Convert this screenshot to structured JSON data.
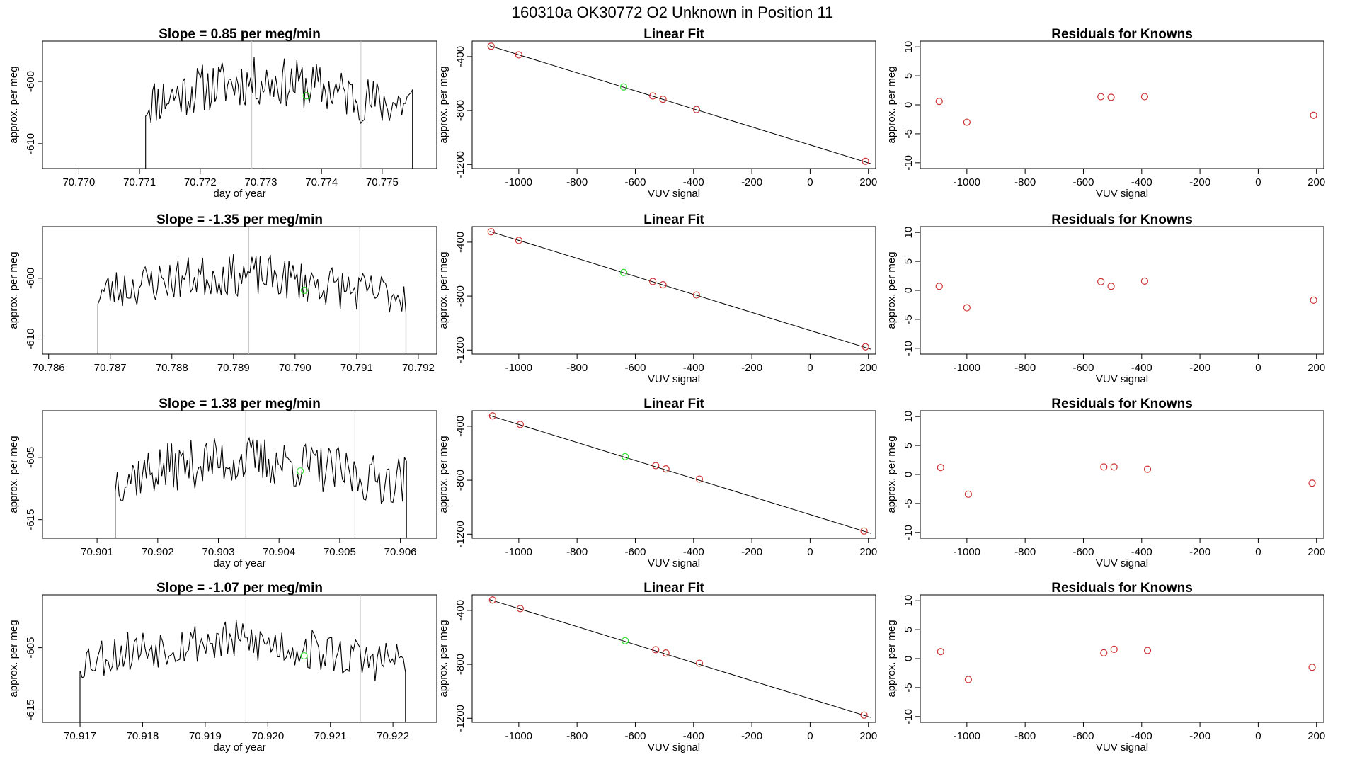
{
  "page_title": "160310a      OK30772    O2 Unknown in Position  11",
  "colors": {
    "known": "#cd3333",
    "unknown": "#33dd33",
    "trace": "#000000",
    "marker": "#c8c8c8"
  },
  "chart_data": [
    {
      "type": "line",
      "row": 0,
      "kind": "timeseries",
      "title": "Slope =  0.85  per meg/min",
      "xlabel": "day of year",
      "ylabel": "approx. per meg",
      "xlim": [
        70.7694,
        70.7759
      ],
      "ylim": [
        -614,
        -593.5
      ],
      "xticks": [
        "70.770",
        "70.771",
        "70.772",
        "70.773",
        "70.774",
        "70.775"
      ],
      "yticks": [
        "-600",
        "-610"
      ],
      "trace": {
        "start": 70.7711,
        "end": 70.7755,
        "base": -603.5,
        "amp": 3.5,
        "noise": 4,
        "seed": 11
      },
      "markers": [
        70.77285,
        70.77465
      ],
      "unknown_point": {
        "x": 70.77375,
        "y": -602.3
      }
    },
    {
      "type": "scatter",
      "row": 0,
      "kind": "fit",
      "title": "Linear Fit",
      "xlabel": "VUV signal",
      "ylabel": "approx. per meg",
      "xlim": [
        -1160,
        225
      ],
      "ylim": [
        -1230,
        -285
      ],
      "xticks": [
        "-1000",
        "-800",
        "-600",
        "-400",
        "-200",
        "0",
        "200"
      ],
      "yticks": [
        "-400",
        "-800",
        "-1200"
      ],
      "fit_line": {
        "x": [
          -1100,
          210
        ],
        "y": [
          -320,
          -1195
        ]
      },
      "knowns": {
        "x": [
          -1095,
          -1000,
          -540,
          -505,
          -390,
          190
        ],
        "y": [
          -323,
          -387,
          -692,
          -716,
          -792,
          -1176
        ]
      },
      "unknown": {
        "x": -640,
        "y": -625
      }
    },
    {
      "type": "scatter",
      "row": 0,
      "kind": "residuals",
      "title": "Residuals for Knowns",
      "xlabel": "VUV signal",
      "ylabel": "approx. per meg",
      "xlim": [
        -1160,
        225
      ],
      "ylim": [
        -11,
        11
      ],
      "xticks": [
        "-1000",
        "-800",
        "-600",
        "-400",
        "-200",
        "0",
        "200"
      ],
      "yticks": [
        "10",
        "5",
        "0",
        "-5",
        "-10"
      ],
      "knowns": {
        "x": [
          -1095,
          -1000,
          -540,
          -505,
          -390,
          190
        ],
        "y": [
          0.6,
          -3.0,
          1.4,
          1.3,
          1.4,
          -1.8
        ]
      }
    },
    {
      "type": "line",
      "row": 1,
      "kind": "timeseries",
      "title": "Slope =  -1.35  per meg/min",
      "xlabel": "",
      "ylabel": "approx. per meg",
      "xlim": [
        70.7859,
        70.7923
      ],
      "ylim": [
        -612.5,
        -591.5
      ],
      "xticks": [
        "70.786",
        "70.787",
        "70.788",
        "70.789",
        "70.790",
        "70.791",
        "70.792"
      ],
      "yticks": [
        "-600",
        "-610"
      ],
      "trace": {
        "start": 70.7868,
        "end": 70.7918,
        "base": -602.5,
        "amp": 3,
        "noise": 3.5,
        "seed": 23
      },
      "markers": [
        70.78925,
        70.79105
      ],
      "unknown_point": {
        "x": 70.79015,
        "y": -602.0
      }
    },
    {
      "type": "scatter",
      "row": 1,
      "kind": "fit",
      "title": "Linear Fit",
      "xlabel": "VUV signal",
      "ylabel": "approx. per meg",
      "xlim": [
        -1160,
        225
      ],
      "ylim": [
        -1230,
        -285
      ],
      "xticks": [
        "-1000",
        "-800",
        "-600",
        "-400",
        "-200",
        "0",
        "200"
      ],
      "yticks": [
        "-400",
        "-800",
        "-1200"
      ],
      "fit_line": {
        "x": [
          -1100,
          210
        ],
        "y": [
          -320,
          -1195
        ]
      },
      "knowns": {
        "x": [
          -1095,
          -1000,
          -540,
          -505,
          -390,
          190
        ],
        "y": [
          -323,
          -387,
          -692,
          -716,
          -792,
          -1176
        ]
      },
      "unknown": {
        "x": -640,
        "y": -625
      }
    },
    {
      "type": "scatter",
      "row": 1,
      "kind": "residuals",
      "title": "Residuals for Knowns",
      "xlabel": "VUV signal",
      "ylabel": "approx. per meg",
      "xlim": [
        -1160,
        225
      ],
      "ylim": [
        -11,
        11
      ],
      "xticks": [
        "-1000",
        "-800",
        "-600",
        "-400",
        "-200",
        "0",
        "200"
      ],
      "yticks": [
        "10",
        "5",
        "0",
        "-5",
        "-10"
      ],
      "knowns": {
        "x": [
          -1095,
          -1000,
          -540,
          -505,
          -390,
          190
        ],
        "y": [
          0.7,
          -3.0,
          1.5,
          0.7,
          1.6,
          -1.7
        ]
      }
    },
    {
      "type": "line",
      "row": 2,
      "kind": "timeseries",
      "title": "Slope =  1.38  per meg/min",
      "xlabel": "day of year",
      "ylabel": "approx. per meg",
      "xlim": [
        70.9001,
        70.9066
      ],
      "ylim": [
        -618,
        -597.5
      ],
      "xticks": [
        "70.901",
        "70.902",
        "70.903",
        "70.904",
        "70.905",
        "70.906"
      ],
      "yticks": [
        "-605",
        "-615"
      ],
      "trace": {
        "start": 70.9013,
        "end": 70.9061,
        "base": -608.5,
        "amp": 3,
        "noise": 4,
        "seed": 37
      },
      "markers": [
        70.90345,
        70.90525
      ],
      "unknown_point": {
        "x": 70.90435,
        "y": -607.2
      }
    },
    {
      "type": "scatter",
      "row": 2,
      "kind": "fit",
      "title": "Linear Fit",
      "xlabel": "VUV signal",
      "ylabel": "approx. per meg",
      "xlim": [
        -1160,
        225
      ],
      "ylim": [
        -1230,
        -285
      ],
      "xticks": [
        "-1000",
        "-800",
        "-600",
        "-400",
        "-200",
        "0",
        "200"
      ],
      "yticks": [
        "-400",
        "-800",
        "-1200"
      ],
      "fit_line": {
        "x": [
          -1100,
          210
        ],
        "y": [
          -320,
          -1195
        ]
      },
      "knowns": {
        "x": [
          -1090,
          -995,
          -530,
          -495,
          -380,
          185
        ],
        "y": [
          -323,
          -387,
          -692,
          -716,
          -792,
          -1176
        ]
      },
      "unknown": {
        "x": -635,
        "y": -625
      }
    },
    {
      "type": "scatter",
      "row": 2,
      "kind": "residuals",
      "title": "Residuals for Knowns",
      "xlabel": "VUV signal",
      "ylabel": "approx. per meg",
      "xlim": [
        -1160,
        225
      ],
      "ylim": [
        -11,
        11
      ],
      "xticks": [
        "-1000",
        "-800",
        "-600",
        "-400",
        "-200",
        "0",
        "200"
      ],
      "yticks": [
        "10",
        "5",
        "0",
        "-5",
        "-10"
      ],
      "knowns": {
        "x": [
          -1090,
          -995,
          -530,
          -495,
          -380,
          185
        ],
        "y": [
          1.2,
          -3.4,
          1.3,
          1.3,
          0.9,
          -1.5
        ]
      }
    },
    {
      "type": "line",
      "row": 3,
      "kind": "timeseries",
      "title": "Slope =  -1.07  per meg/min",
      "xlabel": "day of year",
      "ylabel": "approx. per meg",
      "xlim": [
        70.9164,
        70.9227
      ],
      "ylim": [
        -617,
        -596.5
      ],
      "xticks": [
        "70.917",
        "70.918",
        "70.919",
        "70.920",
        "70.921",
        "70.922"
      ],
      "yticks": [
        "-605",
        "-615"
      ],
      "trace": {
        "start": 70.917,
        "end": 70.9222,
        "base": -607,
        "amp": 3,
        "noise": 3.5,
        "seed": 53
      },
      "markers": [
        70.91965,
        70.92148
      ],
      "unknown_point": {
        "x": 70.92058,
        "y": -606.3
      }
    },
    {
      "type": "scatter",
      "row": 3,
      "kind": "fit",
      "title": "Linear Fit",
      "xlabel": "VUV signal",
      "ylabel": "approx. per meg",
      "xlim": [
        -1160,
        225
      ],
      "ylim": [
        -1230,
        -285
      ],
      "xticks": [
        "-1000",
        "-800",
        "-600",
        "-400",
        "-200",
        "0",
        "200"
      ],
      "yticks": [
        "-400",
        "-800",
        "-1200"
      ],
      "fit_line": {
        "x": [
          -1100,
          210
        ],
        "y": [
          -320,
          -1195
        ]
      },
      "knowns": {
        "x": [
          -1090,
          -995,
          -530,
          -495,
          -380,
          185
        ],
        "y": [
          -323,
          -387,
          -692,
          -716,
          -792,
          -1176
        ]
      },
      "unknown": {
        "x": -635,
        "y": -625
      }
    },
    {
      "type": "scatter",
      "row": 3,
      "kind": "residuals",
      "title": "Residuals for Knowns",
      "xlabel": "VUV signal",
      "ylabel": "approx. per meg",
      "xlim": [
        -1160,
        225
      ],
      "ylim": [
        -11,
        11
      ],
      "xticks": [
        "-1000",
        "-800",
        "-600",
        "-400",
        "-200",
        "0",
        "200"
      ],
      "yticks": [
        "10",
        "5",
        "0",
        "-5",
        "-10"
      ],
      "knowns": {
        "x": [
          -1090,
          -995,
          -530,
          -495,
          -380,
          185
        ],
        "y": [
          1.2,
          -3.6,
          1.0,
          1.6,
          1.4,
          -1.5
        ]
      }
    }
  ]
}
